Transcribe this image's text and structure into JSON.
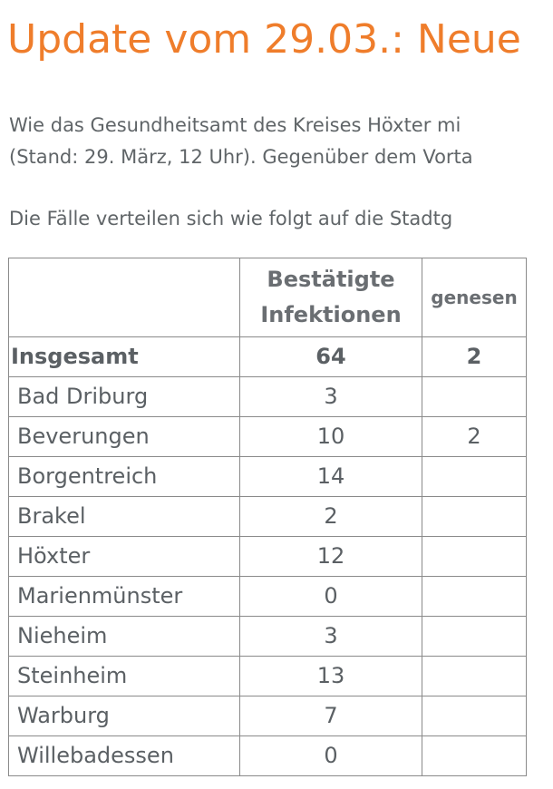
{
  "title": "Update vom 29.03.: Neue",
  "paragraph1": {
    "line1": "Wie das Gesundheitsamt des Kreises Höxter mi",
    "line2": "(Stand: 29. März, 12 Uhr). Gegenüber dem Vorta"
  },
  "paragraph2": "Die Fälle verteilen sich wie folgt auf die Stadtg",
  "table": {
    "headers": {
      "region": "",
      "confirmed_line1": "Bestätigte",
      "confirmed_line2": "Infektionen",
      "recovered": "genesen"
    },
    "total": {
      "label": "Insgesamt",
      "confirmed": "64",
      "recovered": "2"
    },
    "rows": [
      {
        "name": "Bad Driburg",
        "confirmed": "3",
        "recovered": ""
      },
      {
        "name": "Beverungen",
        "confirmed": "10",
        "recovered": "2"
      },
      {
        "name": "Borgentreich",
        "confirmed": "14",
        "recovered": ""
      },
      {
        "name": "Brakel",
        "confirmed": "2",
        "recovered": ""
      },
      {
        "name": "Höxter",
        "confirmed": "12",
        "recovered": ""
      },
      {
        "name": "Marienmünster",
        "confirmed": "0",
        "recovered": ""
      },
      {
        "name": "Nieheim",
        "confirmed": "3",
        "recovered": ""
      },
      {
        "name": "Steinheim",
        "confirmed": "13",
        "recovered": ""
      },
      {
        "name": "Warburg",
        "confirmed": "7",
        "recovered": ""
      },
      {
        "name": "Willebadessen",
        "confirmed": "0",
        "recovered": ""
      }
    ]
  },
  "colors": {
    "title": "#ef7d2b",
    "text": "#606568",
    "border": "#8a8a8a"
  }
}
